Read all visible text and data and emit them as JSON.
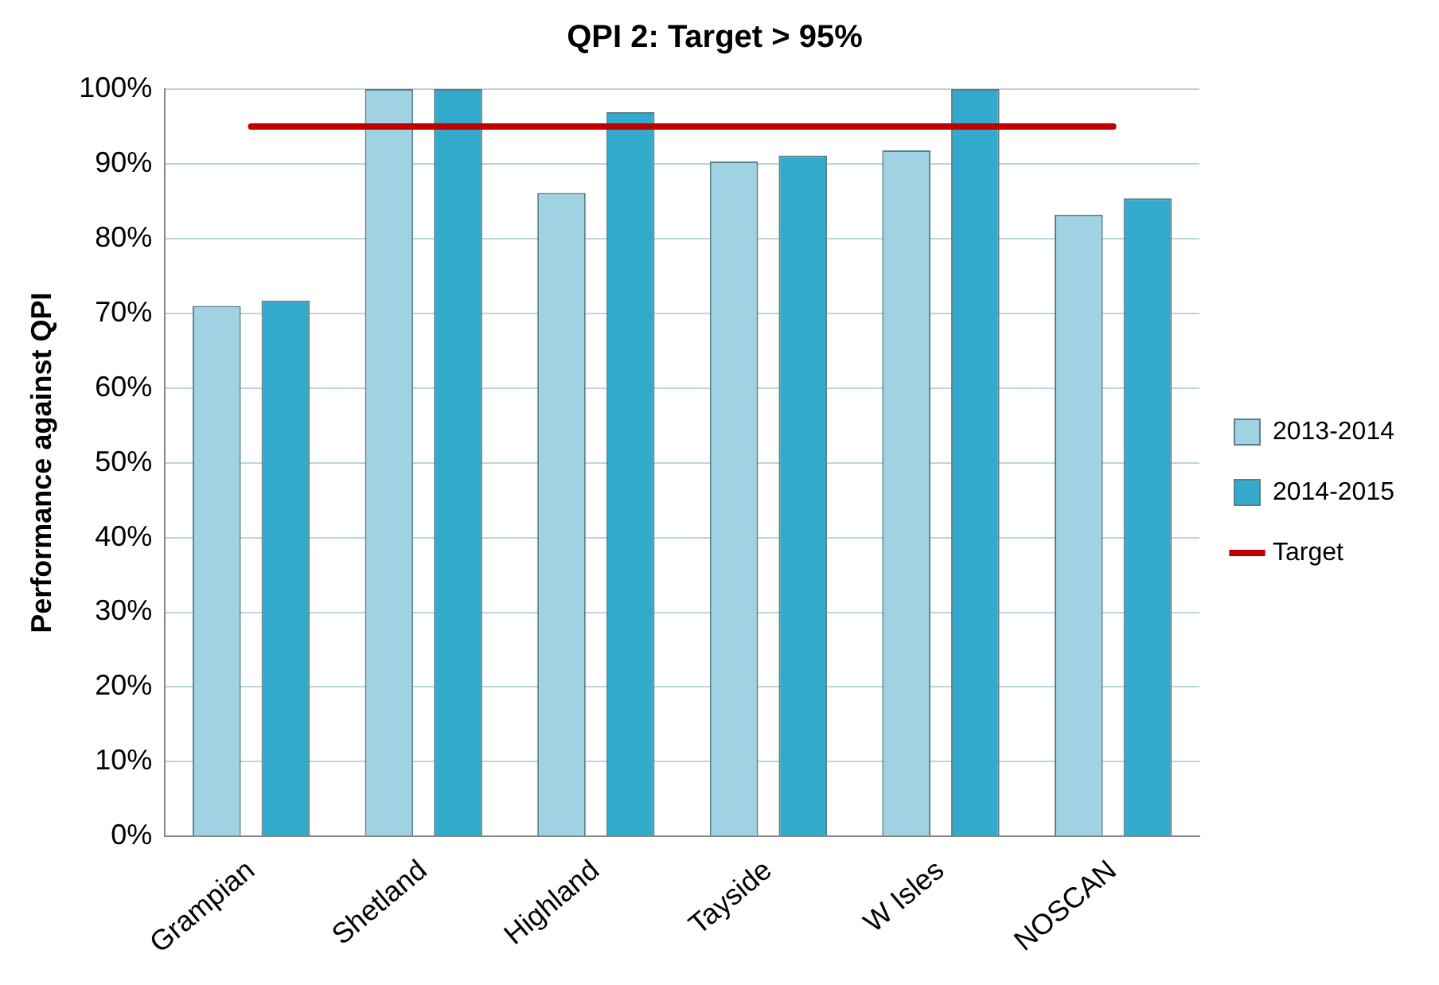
{
  "chart_data": {
    "type": "bar",
    "title": "QPI 2: Target > 95%",
    "ylabel": "Performance against QPI",
    "categories": [
      "Grampian",
      "Shetland",
      "Highland",
      "Tayside",
      "W Isles",
      "NOSCAN"
    ],
    "series": [
      {
        "name": "2013-2014",
        "color": "#9fd3e3",
        "values": [
          71.0,
          100,
          86.1,
          90.3,
          91.8,
          83.2
        ]
      },
      {
        "name": "2014-2015",
        "color": "#31aacb",
        "values": [
          71.7,
          100,
          96.9,
          91.1,
          100,
          85.4
        ]
      },
      {
        "name": "Target",
        "type": "line",
        "color": "#c00000",
        "marker": "none",
        "values": [
          95,
          95,
          95,
          95,
          95,
          95
        ]
      }
    ],
    "ylim": [
      0,
      100
    ],
    "yticks": [
      {
        "value": 0,
        "label": "0%"
      },
      {
        "value": 10,
        "label": "10%"
      },
      {
        "value": 20,
        "label": "20%"
      },
      {
        "value": 30,
        "label": "30%"
      },
      {
        "value": 40,
        "label": "40%"
      },
      {
        "value": 50,
        "label": "50%"
      },
      {
        "value": 60,
        "label": "60%"
      },
      {
        "value": 70,
        "label": "70%"
      },
      {
        "value": 80,
        "label": "80%"
      },
      {
        "value": 90,
        "label": "90%"
      },
      {
        "value": 100,
        "label": "100%"
      }
    ],
    "grid": "y",
    "legend": "right"
  }
}
